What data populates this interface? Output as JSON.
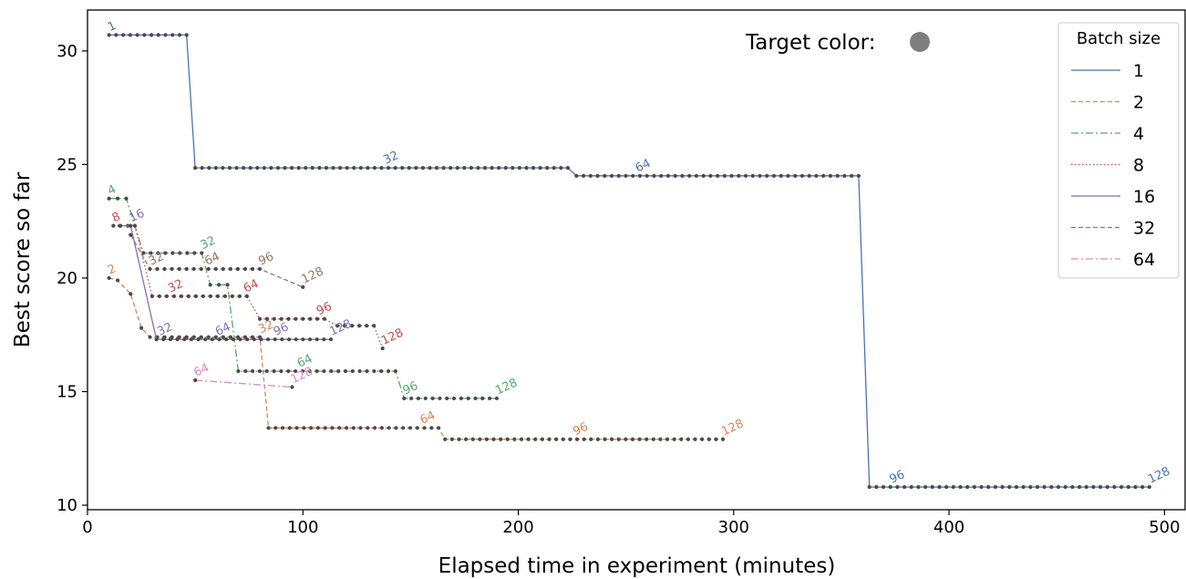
{
  "chart_data": {
    "type": "line",
    "title": "",
    "xlabel": "Elapsed time in experiment (minutes)",
    "ylabel": "Best score so far",
    "xlim": [
      0,
      510
    ],
    "ylim": [
      9.8,
      31.8
    ],
    "xticks": [
      0,
      100,
      200,
      300,
      400,
      500
    ],
    "yticks": [
      10,
      15,
      20,
      25,
      30
    ],
    "grid": false,
    "legend": {
      "title": "Batch size",
      "position": "top-right"
    },
    "annotation": {
      "text": "Target color:",
      "marker_color": "#7f7f7f"
    },
    "series": [
      {
        "name": "1",
        "color": "#4c72b0",
        "dash": "",
        "points": [
          [
            10,
            30.7
          ],
          [
            46,
            30.7
          ],
          [
            50,
            24.85
          ],
          [
            223,
            24.85
          ],
          [
            227,
            24.5
          ],
          [
            358,
            24.5
          ],
          [
            363,
            10.8
          ],
          [
            493,
            10.8
          ]
        ],
        "labels": [
          {
            "text": "1",
            "x": 10,
            "y": 30.7
          },
          {
            "text": "32",
            "x": 138,
            "y": 24.85
          },
          {
            "text": "64",
            "x": 255,
            "y": 24.5
          },
          {
            "text": "96",
            "x": 373,
            "y": 10.8
          },
          {
            "text": "128",
            "x": 493,
            "y": 10.8
          }
        ]
      },
      {
        "name": "2",
        "color": "#dd8452",
        "dash": "5,3",
        "points": [
          [
            10,
            20.0
          ],
          [
            14,
            19.9
          ],
          [
            20,
            19.3
          ],
          [
            25,
            17.8
          ],
          [
            29,
            17.4
          ],
          [
            80,
            17.4
          ],
          [
            84,
            13.4
          ],
          [
            163,
            13.4
          ],
          [
            166,
            12.9
          ],
          [
            295,
            12.9
          ]
        ],
        "labels": [
          {
            "text": "2",
            "x": 10,
            "y": 20.0
          },
          {
            "text": "32",
            "x": 80,
            "y": 17.4
          },
          {
            "text": "64",
            "x": 155,
            "y": 13.4
          },
          {
            "text": "96",
            "x": 226,
            "y": 12.9
          },
          {
            "text": "128",
            "x": 295,
            "y": 12.9
          }
        ]
      },
      {
        "name": "4",
        "color": "#55a868",
        "dash": "8,3,2,3",
        "points": [
          [
            10,
            23.5
          ],
          [
            18,
            23.5
          ],
          [
            26,
            21.1
          ],
          [
            53,
            21.1
          ],
          [
            57,
            19.7
          ],
          [
            65,
            19.7
          ],
          [
            70,
            15.9
          ],
          [
            143,
            15.9
          ],
          [
            147,
            14.7
          ],
          [
            190,
            14.7
          ]
        ],
        "labels": [
          {
            "text": "4",
            "x": 10,
            "y": 23.5
          },
          {
            "text": "32",
            "x": 53,
            "y": 21.1
          },
          {
            "text": "64",
            "x": 98,
            "y": 15.9
          },
          {
            "text": "96",
            "x": 147,
            "y": 14.7
          },
          {
            "text": "128",
            "x": 190,
            "y": 14.7
          }
        ]
      },
      {
        "name": "8",
        "color": "#c44e52",
        "dash": "1.5,2.5",
        "points": [
          [
            12,
            22.3
          ],
          [
            22,
            22.3
          ],
          [
            30,
            19.2
          ],
          [
            74,
            19.2
          ],
          [
            80,
            18.2
          ],
          [
            110,
            18.2
          ],
          [
            116,
            17.9
          ],
          [
            133,
            17.9
          ],
          [
            137,
            16.9
          ]
        ],
        "labels": [
          {
            "text": "8",
            "x": 12,
            "y": 22.3
          },
          {
            "text": "32",
            "x": 38,
            "y": 19.2
          },
          {
            "text": "64",
            "x": 73,
            "y": 19.2
          },
          {
            "text": "96",
            "x": 107,
            "y": 18.2
          },
          {
            "text": "128",
            "x": 137,
            "y": 16.9
          }
        ]
      },
      {
        "name": "16",
        "color": "#8172b3",
        "dash": "",
        "points": [
          [
            15,
            22.3
          ],
          [
            20,
            22.3
          ],
          [
            32,
            17.3
          ],
          [
            113,
            17.3
          ]
        ],
        "labels": [
          {
            "text": "16",
            "x": 20,
            "y": 22.3
          },
          {
            "text": "32",
            "x": 33,
            "y": 17.3
          },
          {
            "text": "64",
            "x": 60,
            "y": 17.3
          },
          {
            "text": "96",
            "x": 87,
            "y": 17.3
          },
          {
            "text": "128",
            "x": 113,
            "y": 17.3
          }
        ]
      },
      {
        "name": "32",
        "color": "#937860",
        "dash": "5,3",
        "points": [
          [
            20,
            21.9
          ],
          [
            29,
            20.4
          ],
          [
            80,
            20.4
          ],
          [
            100,
            19.6
          ]
        ],
        "labels": [
          {
            "text": "32",
            "x": 29,
            "y": 20.4
          },
          {
            "text": "64",
            "x": 55,
            "y": 20.4
          },
          {
            "text": "96",
            "x": 80,
            "y": 20.4
          },
          {
            "text": "128",
            "x": 100,
            "y": 19.6
          }
        ]
      },
      {
        "name": "64",
        "color": "#da8bc3",
        "dash": "8,3,2,3",
        "points": [
          [
            50,
            15.5
          ],
          [
            95,
            15.2
          ]
        ],
        "labels": [
          {
            "text": "64",
            "x": 50,
            "y": 15.5
          },
          {
            "text": "128",
            "x": 95,
            "y": 15.2
          }
        ]
      }
    ]
  }
}
